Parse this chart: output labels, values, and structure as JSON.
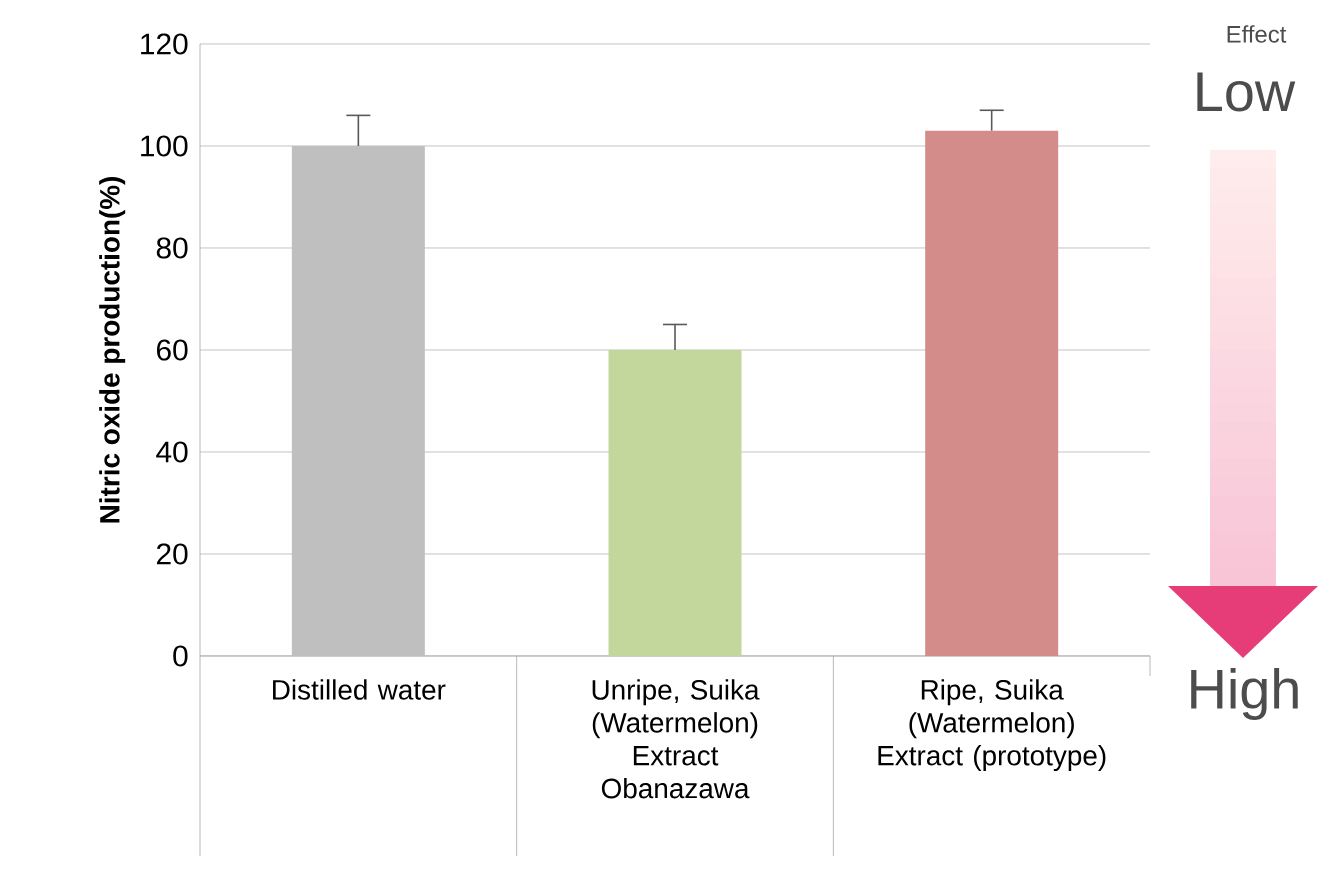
{
  "chart_data": {
    "type": "bar",
    "ylabel": "Nitric oxide production(%)",
    "categories": [
      "Distilled water",
      "Unripe, Suika (Watermelon) Extract Obanazawa",
      "Ripe, Suika (Watermelon) Extract (prototype)"
    ],
    "values": [
      100,
      60,
      103
    ],
    "colors": [
      "#bfbfbf",
      "#c3d69b",
      "#d38c8a"
    ],
    "errors": [
      [
        100,
        106
      ],
      [
        60,
        65
      ],
      [
        103,
        107
      ]
    ],
    "ylim": [
      0,
      120
    ],
    "yticks": [
      0,
      20,
      40,
      60,
      80,
      100,
      120
    ],
    "grid": "y",
    "annotations": [
      "Effect",
      "Low",
      "High"
    ]
  }
}
